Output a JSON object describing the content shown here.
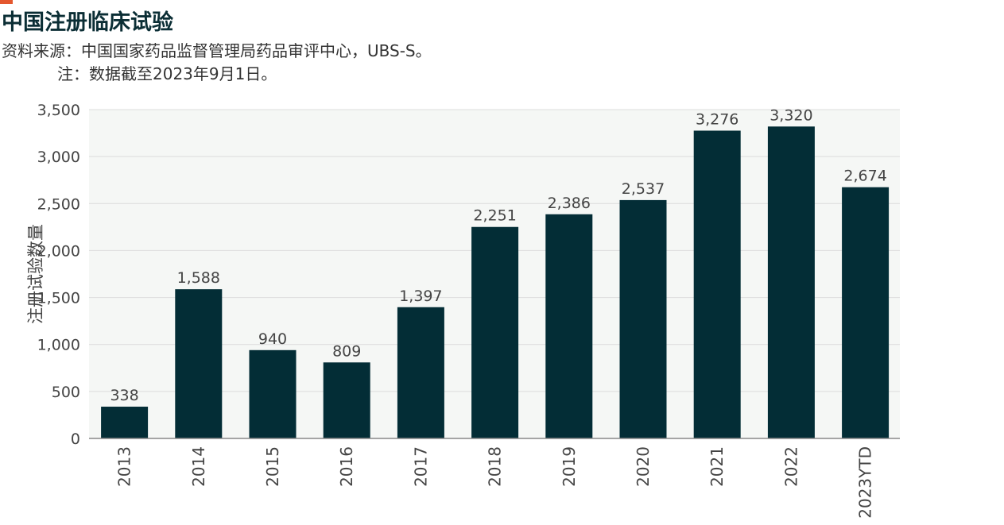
{
  "header": {
    "title": "中国注册临床试验",
    "source": "资料来源：中国国家药品监督管理局药品审评中心，UBS-S。",
    "note": "注：数据截至2023年9月1日。"
  },
  "colors": {
    "accent": "#e4572e",
    "bar": "#032d36",
    "plot_background": "#f5f7f5",
    "gridline": "#dcdcdc",
    "axis": "#888888",
    "text": "#444444"
  },
  "chart_data": {
    "type": "bar",
    "title": "中国注册临床试验",
    "xlabel": "",
    "ylabel": "注册试验数量",
    "categories": [
      "2013",
      "2014",
      "2015",
      "2016",
      "2017",
      "2018",
      "2019",
      "2020",
      "2021",
      "2022",
      "2023YTD"
    ],
    "values": [
      338,
      1588,
      940,
      809,
      1397,
      2251,
      2386,
      2537,
      3276,
      3320,
      2674
    ],
    "value_labels": [
      "338",
      "1,588",
      "940",
      "809",
      "1,397",
      "2,251",
      "2,386",
      "2,537",
      "3,276",
      "3,320",
      "2,674"
    ],
    "ylim": [
      0,
      3500
    ],
    "yticks": [
      0,
      500,
      1000,
      1500,
      2000,
      2500,
      3000,
      3500
    ],
    "ytick_labels": [
      "0",
      "500",
      "1,000",
      "1,500",
      "2,000",
      "2,500",
      "3,000",
      "3,500"
    ],
    "grid": true,
    "legend": "none"
  }
}
